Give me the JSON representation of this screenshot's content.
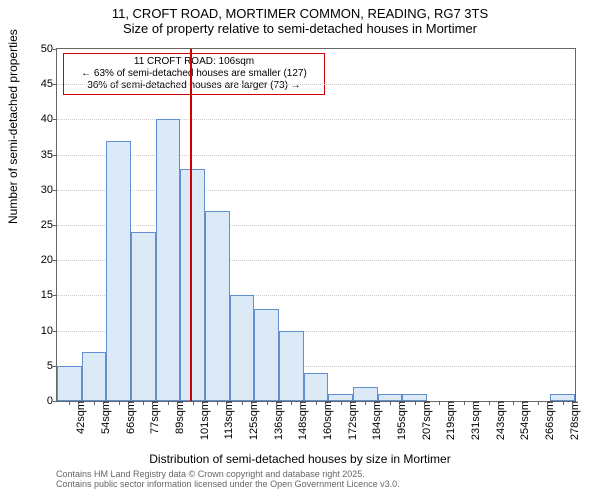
{
  "title": {
    "line1": "11, CROFT ROAD, MORTIMER COMMON, READING, RG7 3TS",
    "line2": "Size of property relative to semi-detached houses in Mortimer",
    "fontsize": 13
  },
  "chart": {
    "type": "histogram",
    "bar_fill": "#dceaf7",
    "bar_border": "#6090d0",
    "background_color": "#ffffff",
    "grid_color": "#cccccc",
    "axis_color": "#666666",
    "categories": [
      "42sqm",
      "54sqm",
      "66sqm",
      "77sqm",
      "89sqm",
      "101sqm",
      "113sqm",
      "125sqm",
      "136sqm",
      "148sqm",
      "160sqm",
      "172sqm",
      "184sqm",
      "195sqm",
      "207sqm",
      "219sqm",
      "231sqm",
      "243sqm",
      "254sqm",
      "266sqm",
      "278sqm"
    ],
    "values": [
      5,
      7,
      37,
      24,
      40,
      33,
      27,
      15,
      13,
      10,
      4,
      1,
      2,
      1,
      1,
      0,
      0,
      0,
      0,
      0,
      1
    ],
    "ylim": [
      0,
      50
    ],
    "ytick_step": 5,
    "ylabel": "Number of semi-detached properties",
    "xlabel": "Distribution of semi-detached houses by size in Mortimer",
    "label_fontsize": 12,
    "tick_fontsize": 11,
    "refline": {
      "position_index": 5.4,
      "color": "#d00000"
    },
    "annotation": {
      "line1": "11 CROFT ROAD: 106sqm",
      "line2": "← 63% of semi-detached houses are smaller (127)",
      "line3": "36% of semi-detached houses are larger (73) →",
      "border_color": "#d00000"
    }
  },
  "footer": {
    "line1": "Contains HM Land Registry data © Crown copyright and database right 2025.",
    "line2": "Contains public sector information licensed under the Open Government Licence v3.0."
  }
}
